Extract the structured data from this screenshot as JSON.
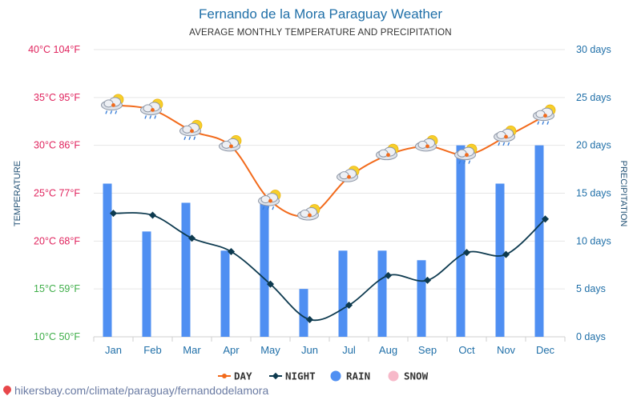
{
  "chart_data": {
    "type": "line",
    "title": "Fernando de la Mora Paraguay Weather",
    "subtitle": "AVERAGE MONTHLY TEMPERATURE AND PRECIPITATION",
    "ylabel_left": "TEMPERATURE",
    "ylabel_right": "PRECIPITATION",
    "categories": [
      "Jan",
      "Feb",
      "Mar",
      "Apr",
      "May",
      "Jun",
      "Jul",
      "Aug",
      "Sep",
      "Oct",
      "Nov",
      "Dec"
    ],
    "left_axis": {
      "range": [
        10,
        40
      ],
      "ticks": [
        {
          "value": 40,
          "label": "40°C 104°F",
          "color": "#e0245e"
        },
        {
          "value": 35,
          "label": "35°C 95°F",
          "color": "#e0245e"
        },
        {
          "value": 30,
          "label": "30°C 86°F",
          "color": "#e0245e"
        },
        {
          "value": 25,
          "label": "25°C 77°F",
          "color": "#e0245e"
        },
        {
          "value": 20,
          "label": "20°C 68°F",
          "color": "#e0245e"
        },
        {
          "value": 15,
          "label": "15°C 59°F",
          "color": "#3fae49"
        },
        {
          "value": 10,
          "label": "10°C 50°F",
          "color": "#3fae49"
        }
      ]
    },
    "right_axis": {
      "range": [
        0,
        30
      ],
      "ticks": [
        {
          "value": 30,
          "label": "30 days"
        },
        {
          "value": 25,
          "label": "25 days"
        },
        {
          "value": 20,
          "label": "20 days"
        },
        {
          "value": 15,
          "label": "15 days"
        },
        {
          "value": 10,
          "label": "10 days"
        },
        {
          "value": 5,
          "label": "5 days"
        },
        {
          "value": 0,
          "label": "0 days"
        }
      ]
    },
    "series": [
      {
        "name": "DAY",
        "type": "line",
        "axis": "left",
        "color": "#f26a1b",
        "values": [
          34.2,
          33.7,
          31.5,
          29.9,
          24.2,
          22.7,
          26.7,
          29.0,
          29.9,
          29.0,
          30.9,
          33.1
        ]
      },
      {
        "name": "NIGHT",
        "type": "line",
        "axis": "left",
        "color": "#0d3a4f",
        "values": [
          22.9,
          22.7,
          20.3,
          18.9,
          15.5,
          11.8,
          13.3,
          16.4,
          15.9,
          18.8,
          18.6,
          22.3
        ]
      },
      {
        "name": "RAIN",
        "type": "bar",
        "axis": "right",
        "color": "#4f8ff2",
        "values": [
          16,
          11,
          14,
          9,
          14,
          5,
          9,
          9,
          8,
          20,
          16,
          20
        ]
      },
      {
        "name": "SNOW",
        "type": "bar",
        "axis": "right",
        "color": "#f7b9c9",
        "values": [
          0,
          0,
          0,
          0,
          0,
          0,
          0,
          0,
          0,
          0,
          0,
          0
        ]
      }
    ],
    "weather_icons": [
      "cloud-sun-rain-icon",
      "cloud-sun-rain-icon",
      "cloud-sun-rain-icon",
      "cloud-sun-icon",
      "cloud-sun-rain-icon",
      "cloud-sun-icon",
      "cloud-sun-icon",
      "cloud-sun-icon",
      "cloud-sun-icon",
      "cloud-sun-rain-icon",
      "cloud-sun-rain-icon",
      "cloud-sun-rain-icon"
    ],
    "grid": true,
    "legend": "bottom"
  },
  "footer": {
    "source": "hikersbay.com/climate/paraguay/fernandodelamora"
  }
}
